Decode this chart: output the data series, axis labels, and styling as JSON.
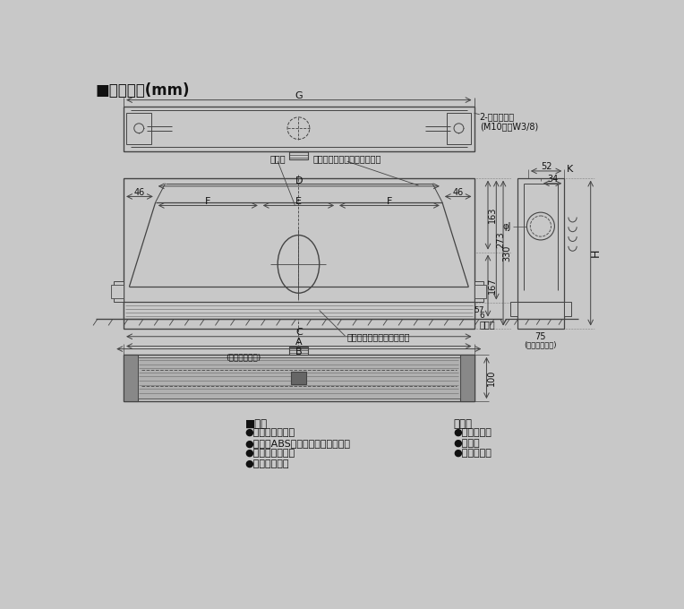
{
  "title": "■外形寸法(mm)",
  "bg_color": "#c8c8c8",
  "line_color": "#444444",
  "dark_color": "#222222",
  "text_color": "#111111",
  "spec_title": "■仕様",
  "spec_items": [
    "●水平羽根可動形",
    "●グリルABS樹脂・鋼板・アルミ製",
    "●チャンバ鋼板製",
    "●ダンパ鋼板製"
  ],
  "acc_title": "付属品",
  "acc_items": [
    "●六角ナット",
    "●平座金",
    "●据付説明書"
  ],
  "label_G": "G",
  "label_D": "D",
  "label_E": "E",
  "label_F": "F",
  "label_A": "A",
  "label_B": "B",
  "label_C": "C",
  "label_H": "H",
  "label_K": "K",
  "label_J": "φJ",
  "dim_46": "46",
  "dim_163": "163",
  "dim_273": "273",
  "dim_330": "330",
  "dim_167": "167",
  "dim_57": "57",
  "dim_6": "6",
  "dim_52": "52",
  "dim_34": "34",
  "dim_75": "75",
  "dim_100": "100",
  "note_bolt": "2-吊ボルト穴\n(M10又はW3/8)",
  "note_damper": "ダンパ",
  "note_chamber": "ラインスリット吹出チャンバ",
  "note_ceil": "天井面",
  "note_ceil_open": "(天井開口寸法)",
  "note_grille": "ラインスリット吹出グリル"
}
